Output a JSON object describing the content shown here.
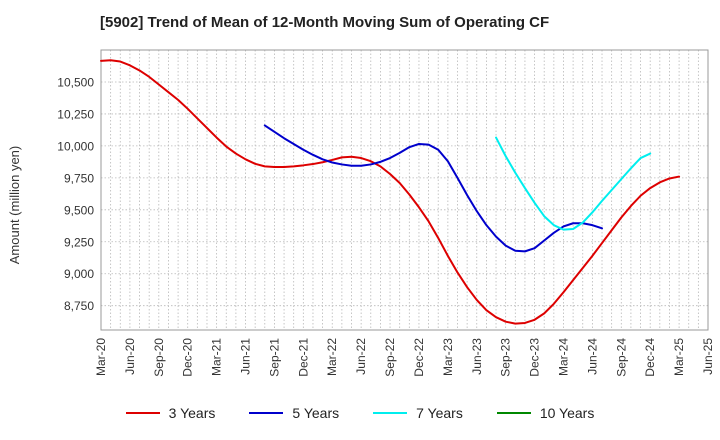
{
  "chart_data": {
    "type": "line",
    "title": "[5902]  Trend of Mean of 12-Month Moving Sum of Operating CF",
    "xlabel": "",
    "ylabel": "Amount (million yen)",
    "ylim": [
      8560,
      10750
    ],
    "yticks": [
      8750,
      9000,
      9250,
      9500,
      9750,
      10000,
      10250,
      10500
    ],
    "ytick_labels": [
      "8,750",
      "9,000",
      "9,250",
      "9,500",
      "9,750",
      "10,000",
      "10,250",
      "10,500"
    ],
    "x_start": "Mar-20",
    "xtick_labels": [
      "Mar-20",
      "Jun-20",
      "Sep-20",
      "Dec-20",
      "Mar-21",
      "Jun-21",
      "Sep-21",
      "Dec-21",
      "Mar-22",
      "Jun-22",
      "Sep-22",
      "Dec-22",
      "Mar-23",
      "Jun-23",
      "Sep-23",
      "Dec-23",
      "Mar-24",
      "Jun-24",
      "Sep-24",
      "Dec-24",
      "Mar-25",
      "Jun-25"
    ],
    "grid": true,
    "legend_position": "bottom",
    "series": [
      {
        "name": "3 Years",
        "color": "#dd0000",
        "points": [
          [
            0,
            10665
          ],
          [
            1,
            10670
          ],
          [
            2,
            10660
          ],
          [
            3,
            10630
          ],
          [
            4,
            10590
          ],
          [
            5,
            10540
          ],
          [
            6,
            10480
          ],
          [
            7,
            10420
          ],
          [
            8,
            10360
          ],
          [
            9,
            10290
          ],
          [
            10,
            10215
          ],
          [
            11,
            10140
          ],
          [
            12,
            10065
          ],
          [
            13,
            9995
          ],
          [
            14,
            9940
          ],
          [
            15,
            9895
          ],
          [
            16,
            9860
          ],
          [
            17,
            9840
          ],
          [
            18,
            9835
          ],
          [
            19,
            9835
          ],
          [
            20,
            9840
          ],
          [
            21,
            9848
          ],
          [
            22,
            9858
          ],
          [
            23,
            9872
          ],
          [
            24,
            9890
          ],
          [
            25,
            9910
          ],
          [
            26,
            9915
          ],
          [
            27,
            9905
          ],
          [
            28,
            9880
          ],
          [
            29,
            9840
          ],
          [
            30,
            9780
          ],
          [
            31,
            9710
          ],
          [
            32,
            9620
          ],
          [
            33,
            9520
          ],
          [
            34,
            9410
          ],
          [
            35,
            9280
          ],
          [
            36,
            9140
          ],
          [
            37,
            9010
          ],
          [
            38,
            8895
          ],
          [
            39,
            8795
          ],
          [
            40,
            8715
          ],
          [
            41,
            8660
          ],
          [
            42,
            8625
          ],
          [
            43,
            8610
          ],
          [
            44,
            8615
          ],
          [
            45,
            8640
          ],
          [
            46,
            8690
          ],
          [
            47,
            8765
          ],
          [
            48,
            8855
          ],
          [
            49,
            8950
          ],
          [
            50,
            9045
          ],
          [
            51,
            9140
          ],
          [
            52,
            9240
          ],
          [
            53,
            9340
          ],
          [
            54,
            9440
          ],
          [
            55,
            9530
          ],
          [
            56,
            9610
          ],
          [
            57,
            9670
          ],
          [
            58,
            9715
          ],
          [
            59,
            9745
          ],
          [
            60,
            9760
          ]
        ]
      },
      {
        "name": "5 Years",
        "color": "#0000cc",
        "points": [
          [
            17,
            10160
          ],
          [
            18,
            10110
          ],
          [
            19,
            10060
          ],
          [
            20,
            10015
          ],
          [
            21,
            9970
          ],
          [
            22,
            9930
          ],
          [
            23,
            9895
          ],
          [
            24,
            9870
          ],
          [
            25,
            9855
          ],
          [
            26,
            9845
          ],
          [
            27,
            9845
          ],
          [
            28,
            9855
          ],
          [
            29,
            9875
          ],
          [
            30,
            9905
          ],
          [
            31,
            9945
          ],
          [
            32,
            9990
          ],
          [
            33,
            10015
          ],
          [
            34,
            10010
          ],
          [
            35,
            9970
          ],
          [
            36,
            9880
          ],
          [
            37,
            9750
          ],
          [
            38,
            9615
          ],
          [
            39,
            9490
          ],
          [
            40,
            9380
          ],
          [
            41,
            9290
          ],
          [
            42,
            9220
          ],
          [
            43,
            9180
          ],
          [
            44,
            9175
          ],
          [
            45,
            9200
          ],
          [
            46,
            9260
          ],
          [
            47,
            9320
          ],
          [
            48,
            9370
          ],
          [
            49,
            9395
          ],
          [
            50,
            9395
          ],
          [
            51,
            9380
          ],
          [
            52,
            9355
          ]
        ]
      },
      {
        "name": "7 Years",
        "color": "#00eeee",
        "points": [
          [
            41,
            10065
          ],
          [
            42,
            9920
          ],
          [
            43,
            9790
          ],
          [
            44,
            9670
          ],
          [
            45,
            9555
          ],
          [
            46,
            9450
          ],
          [
            47,
            9380
          ],
          [
            48,
            9345
          ],
          [
            49,
            9350
          ],
          [
            50,
            9400
          ],
          [
            51,
            9480
          ],
          [
            52,
            9570
          ],
          [
            53,
            9655
          ],
          [
            54,
            9740
          ],
          [
            55,
            9825
          ],
          [
            56,
            9905
          ],
          [
            57,
            9940
          ]
        ]
      },
      {
        "name": "10 Years",
        "color": "#008800",
        "points": []
      }
    ]
  }
}
